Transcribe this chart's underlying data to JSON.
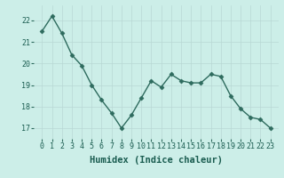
{
  "x": [
    0,
    1,
    2,
    3,
    4,
    5,
    6,
    7,
    8,
    9,
    10,
    11,
    12,
    13,
    14,
    15,
    16,
    17,
    18,
    19,
    20,
    21,
    22,
    23
  ],
  "y": [
    21.5,
    22.2,
    21.4,
    20.4,
    19.9,
    19.0,
    18.3,
    17.7,
    17.0,
    17.6,
    18.4,
    19.2,
    18.9,
    19.5,
    19.2,
    19.1,
    19.1,
    19.5,
    19.4,
    18.5,
    17.9,
    17.5,
    17.4,
    17.0
  ],
  "line_color": "#2e6b5e",
  "marker": "D",
  "marker_size": 2.5,
  "line_width": 1.0,
  "bg_color": "#cceee8",
  "grid_color": "#b8d8d4",
  "xlabel": "Humidex (Indice chaleur)",
  "xlabel_fontsize": 7.5,
  "tick_fontsize": 6,
  "ylim": [
    16.5,
    22.7
  ],
  "yticks": [
    17,
    18,
    19,
    20,
    21,
    22
  ],
  "xticks": [
    0,
    1,
    2,
    3,
    4,
    5,
    6,
    7,
    8,
    9,
    10,
    11,
    12,
    13,
    14,
    15,
    16,
    17,
    18,
    19,
    20,
    21,
    22,
    23
  ]
}
